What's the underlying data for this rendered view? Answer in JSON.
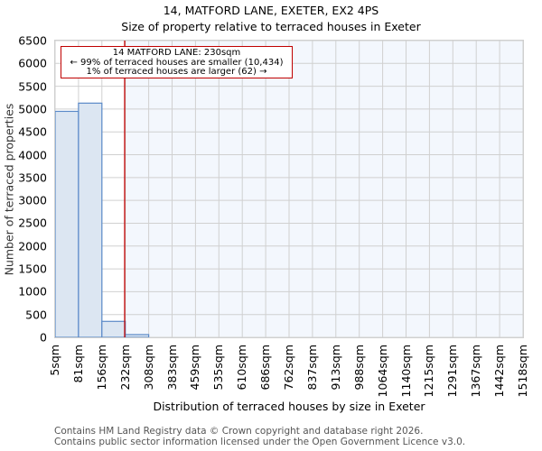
{
  "header": {
    "title": "14, MATFORD LANE, EXETER, EX2 4PS",
    "subtitle": "Size of property relative to terraced houses in Exeter"
  },
  "annotation": {
    "line1": "14 MATFORD LANE: 230sqm",
    "line2": "← 99% of terraced houses are smaller (10,434)",
    "line3": "1% of terraced houses are larger (62) →"
  },
  "axes": {
    "xlabel": "Distribution of terraced houses by size in Exeter",
    "ylabel": "Number of terraced properties"
  },
  "footer": {
    "line1": "Contains HM Land Registry data © Crown copyright and database right 2026.",
    "line2": "Contains public sector information licensed under the Open Government Licence v3.0."
  },
  "colors": {
    "bar_fill": "#dce6f2",
    "bar_edge": "#5b8ac8",
    "highlight_bg": "#f3f7fd",
    "marker_line": "#c00000",
    "grid": "#d0d0d0"
  },
  "chart_data": {
    "type": "bar",
    "title": "14, MATFORD LANE, EXETER, EX2 4PS",
    "subtitle": "Size of property relative to terraced houses in Exeter",
    "xlabel": "Distribution of terraced houses by size in Exeter",
    "ylabel": "Number of terraced properties",
    "categories": [
      "5sqm",
      "81sqm",
      "156sqm",
      "232sqm",
      "308sqm",
      "383sqm",
      "459sqm",
      "535sqm",
      "610sqm",
      "686sqm",
      "762sqm",
      "837sqm",
      "913sqm",
      "988sqm",
      "1064sqm",
      "1140sqm",
      "1215sqm",
      "1291sqm",
      "1367sqm",
      "1442sqm",
      "1518sqm"
    ],
    "values": [
      4950,
      5130,
      350,
      60,
      0,
      0,
      0,
      0,
      0,
      0,
      0,
      0,
      0,
      0,
      0,
      0,
      0,
      0,
      0,
      0
    ],
    "ylim": [
      0,
      6500
    ],
    "yticks": [
      0,
      500,
      1000,
      1500,
      2000,
      2500,
      3000,
      3500,
      4000,
      4500,
      5000,
      5500,
      6000,
      6500
    ],
    "grid": true,
    "marker": {
      "value_sqm": 230,
      "label": "14 MATFORD LANE: 230sqm"
    },
    "annotations": [
      "14 MATFORD LANE: 230sqm",
      "← 99% of terraced houses are smaller (10,434)",
      "1% of terraced houses are larger (62) →"
    ]
  }
}
